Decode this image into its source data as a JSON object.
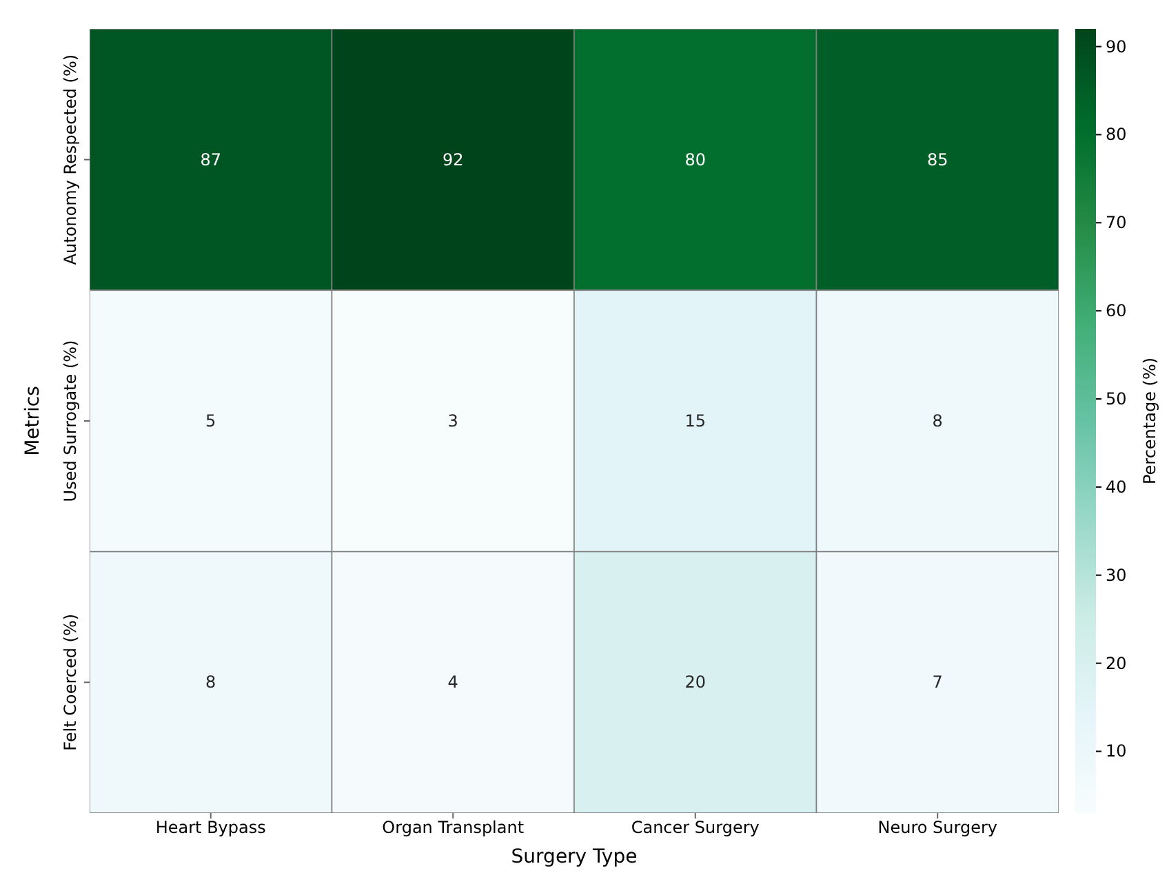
{
  "chart_data": {
    "type": "heatmap",
    "xlabel": "Surgery Type",
    "ylabel": "Metrics",
    "clabel": "Percentage (%)",
    "categories": [
      "Heart Bypass",
      "Organ Transplant",
      "Cancer Surgery",
      "Neuro Surgery"
    ],
    "y_categories": [
      "Autonomy Respected (%)",
      "Used Surrogate (%)",
      "Felt Coerced (%)"
    ],
    "cells": [
      [
        87,
        92,
        80,
        85
      ],
      [
        5,
        3,
        15,
        8
      ],
      [
        8,
        4,
        20,
        7
      ]
    ],
    "clim": [
      3,
      92
    ],
    "cticks": [
      10,
      20,
      30,
      40,
      50,
      60,
      70,
      80,
      90
    ],
    "data_labels": true
  }
}
